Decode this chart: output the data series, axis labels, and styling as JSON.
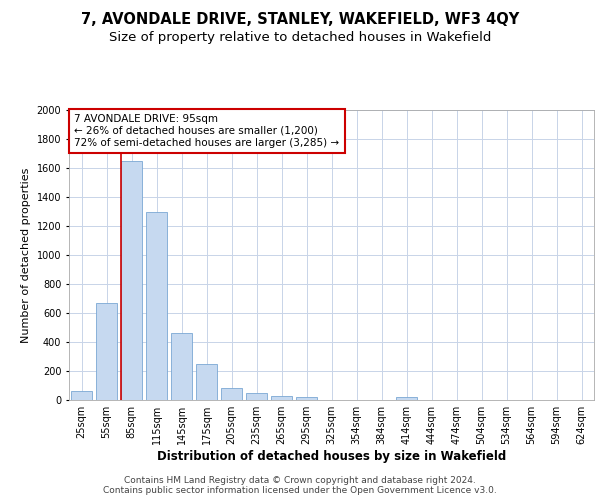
{
  "title": "7, AVONDALE DRIVE, STANLEY, WAKEFIELD, WF3 4QY",
  "subtitle": "Size of property relative to detached houses in Wakefield",
  "xlabel": "Distribution of detached houses by size in Wakefield",
  "ylabel": "Number of detached properties",
  "categories": [
    "25sqm",
    "55sqm",
    "85sqm",
    "115sqm",
    "145sqm",
    "175sqm",
    "205sqm",
    "235sqm",
    "265sqm",
    "295sqm",
    "325sqm",
    "354sqm",
    "384sqm",
    "414sqm",
    "444sqm",
    "474sqm",
    "504sqm",
    "534sqm",
    "564sqm",
    "594sqm",
    "624sqm"
  ],
  "values": [
    60,
    670,
    1650,
    1300,
    460,
    250,
    80,
    50,
    30,
    20,
    0,
    0,
    0,
    20,
    0,
    0,
    0,
    0,
    0,
    0,
    0
  ],
  "bar_color": "#c6d9f0",
  "bar_edge_color": "#7aa8d4",
  "highlight_index": 2,
  "annotation_text": "7 AVONDALE DRIVE: 95sqm\n← 26% of detached houses are smaller (1,200)\n72% of semi-detached houses are larger (3,285) →",
  "annotation_box_color": "#ffffff",
  "annotation_box_edge_color": "#cc0000",
  "ylim": [
    0,
    2000
  ],
  "yticks": [
    0,
    200,
    400,
    600,
    800,
    1000,
    1200,
    1400,
    1600,
    1800,
    2000
  ],
  "grid_color": "#c8d4e8",
  "footer_text": "Contains HM Land Registry data © Crown copyright and database right 2024.\nContains public sector information licensed under the Open Government Licence v3.0.",
  "title_fontsize": 10.5,
  "subtitle_fontsize": 9.5,
  "xlabel_fontsize": 8.5,
  "ylabel_fontsize": 8,
  "tick_fontsize": 7,
  "annotation_fontsize": 7.5,
  "footer_fontsize": 6.5
}
